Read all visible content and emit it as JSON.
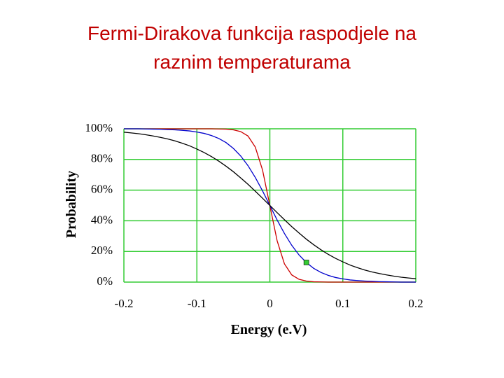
{
  "chart_data": {
    "type": "line",
    "title": [
      "Fermi-Dirakova funkcija raspodjele na",
      "raznim temperaturama"
    ],
    "x_label": "Energy (e.V)",
    "y_label": "Probability",
    "x": [
      -0.2,
      -0.19,
      -0.18,
      -0.17,
      -0.16,
      -0.15,
      -0.14,
      -0.13,
      -0.12,
      -0.11,
      -0.1,
      -0.09,
      -0.08,
      -0.07,
      -0.06,
      -0.05,
      -0.04,
      -0.03,
      -0.02,
      -0.01,
      0,
      0.01,
      0.02,
      0.03,
      0.04,
      0.05,
      0.06,
      0.07,
      0.08,
      0.09,
      0.1,
      0.11,
      0.12,
      0.13,
      0.14,
      0.15,
      0.16,
      0.17,
      0.18,
      0.19,
      0.2
    ],
    "series": [
      {
        "color": "#cc0000",
        "values": [
          100,
          100,
          100,
          100,
          100,
          100,
          100,
          100,
          100,
          100,
          100,
          100,
          100,
          99.9,
          99.8,
          99.3,
          98.2,
          95.3,
          88.1,
          73.1,
          50,
          26.9,
          11.9,
          4.7,
          1.8,
          0.7,
          0.2,
          0.1,
          0,
          0,
          0,
          0,
          0,
          0,
          0,
          0,
          0,
          0,
          0,
          0,
          0
        ]
      },
      {
        "color": "#0000cc",
        "values": [
          100,
          100,
          100,
          99.9,
          99.8,
          99.7,
          99.5,
          99.3,
          99.0,
          98.6,
          97.9,
          97.0,
          95.6,
          93.7,
          91.0,
          87.2,
          82.3,
          76.0,
          68.3,
          59.5,
          50,
          40.5,
          31.7,
          24.0,
          17.7,
          12.8,
          9.0,
          6.3,
          4.4,
          3.0,
          2.1,
          1.4,
          1.0,
          0.7,
          0.5,
          0.3,
          0.2,
          0.1,
          0,
          0,
          0
        ]
      },
      {
        "color": "#000000",
        "values": [
          97.8,
          97.3,
          96.8,
          96.1,
          95.3,
          94.4,
          93.4,
          92.1,
          90.6,
          88.9,
          86.8,
          84.5,
          81.9,
          78.9,
          75.6,
          72.0,
          68.0,
          63.8,
          59.3,
          54.7,
          50,
          45.3,
          40.7,
          36.2,
          32.0,
          28.0,
          24.4,
          21.1,
          18.1,
          15.5,
          13.2,
          11.1,
          9.4,
          7.9,
          6.6,
          5.6,
          4.7,
          3.9,
          3.2,
          2.7,
          2.2
        ]
      }
    ],
    "marker": {
      "x": 0.05,
      "y": 12.8,
      "color": "#33cc33"
    },
    "xlim": [
      -0.2,
      0.2
    ],
    "xticks": [
      -0.2,
      -0.1,
      0,
      0.1,
      0.2
    ],
    "ylim": [
      0,
      100
    ],
    "yticks": [
      {
        "value": 0,
        "label": "0%"
      },
      {
        "value": 20,
        "label": "20%"
      },
      {
        "value": 40,
        "label": "40%"
      },
      {
        "value": 60,
        "label": "60%"
      },
      {
        "value": 80,
        "label": "80%"
      },
      {
        "value": 100,
        "label": "100%"
      }
    ],
    "grid": true,
    "grid_color": "#33cc33"
  }
}
